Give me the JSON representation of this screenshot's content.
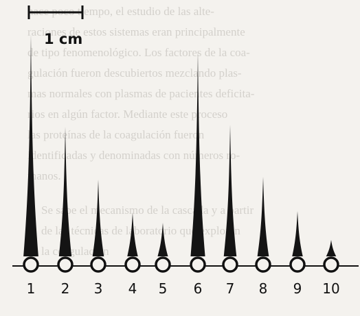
{
  "figure": {
    "scale_label": "1 cm",
    "peak_labels": [
      "1",
      "2",
      "3",
      "4",
      "5",
      "6",
      "7",
      "8",
      "9",
      "10"
    ]
  },
  "show_through_text": [
    "hace poco tiempo, el estudio de las alte-",
    "raciones de estos sistemas eran principalmente",
    "de tipo fenomenológico. Los factores de la coa-",
    "gulación fueron descubiertos mezclando plas-",
    "mas normales con plasmas de pacientes deficita-",
    "rios en algún factor. Mediante este proceso",
    "las proteínas de la coagulación fueron",
    "identificadas y denominadas con números ro-",
    "manos.",
    "Se sabe el mecanismo de la cascada y a partir",
    "de las técnicas de laboratorio que exploran",
    "la coagulación"
  ]
}
